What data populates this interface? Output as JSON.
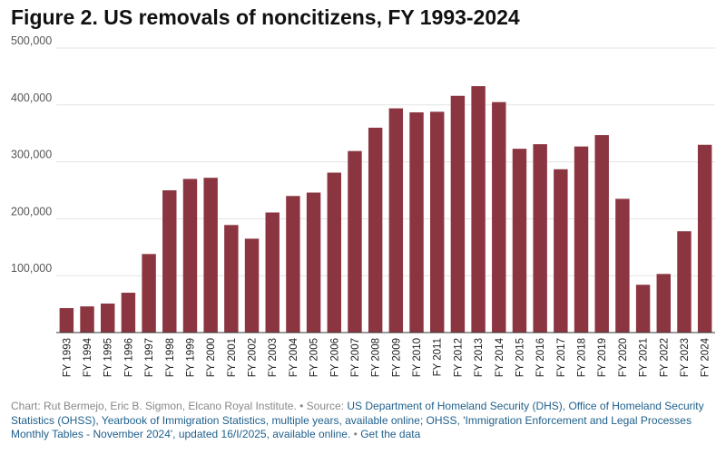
{
  "title": "Figure 2. US removals of noncitizens, FY 1993-2024",
  "footer": {
    "credit": "Chart: Rut Bermejo, Eric B. Sigmon, Elcano Royal Institute. • Source: ",
    "source_link": "US Department of Homeland Security (DHS), Office of Homeland Security Statistics (OHSS), Yearbook of Immigration Statistics, multiple years, available online; OHSS, 'Immigration Enforcement and Legal Processes Monthly Tables - November 2024', updated 16/I/2025, available online.",
    "separator": " • ",
    "get_data": "Get the data"
  },
  "colors": {
    "bar": "#8b3540",
    "grid": "#e3e3e3",
    "axis": "#333333",
    "tick_text": "#555555"
  },
  "chart_data": {
    "type": "bar",
    "title": "Figure 2. US removals of noncitizens, FY 1993-2024",
    "xlabel": "",
    "ylabel": "",
    "ylim": [
      0,
      500000
    ],
    "yticks": [
      {
        "value": 100000,
        "label": "100,000"
      },
      {
        "value": 200000,
        "label": "200,000"
      },
      {
        "value": 300000,
        "label": "300,000"
      },
      {
        "value": 400000,
        "label": "400,000"
      },
      {
        "value": 500000,
        "label": "500,000"
      }
    ],
    "grid": true,
    "categories": [
      "FY 1993",
      "FY 1994",
      "FY 1995",
      "FY 1996",
      "FY 1997",
      "FY 1998",
      "FY 1999",
      "FY 2000",
      "FY 2001",
      "FY 2002",
      "FY 2003",
      "FY 2004",
      "FY 2005",
      "FY 2006",
      "FY 2007",
      "FY 2008",
      "FY 2009",
      "FY 2010",
      "FY 2011",
      "FY 2012",
      "FY 2013",
      "FY 2014",
      "FY 2015",
      "FY 2016",
      "FY 2017",
      "FY 2018",
      "FY 2019",
      "FY 2020",
      "FY 2021",
      "FY 2022",
      "FY 2023",
      "FY 2024"
    ],
    "values": [
      43000,
      46000,
      51000,
      70000,
      138000,
      250000,
      270000,
      272000,
      189000,
      165000,
      211000,
      240000,
      246000,
      281000,
      319000,
      360000,
      394000,
      387000,
      388000,
      416000,
      433000,
      405000,
      323000,
      331000,
      287000,
      327000,
      347000,
      235000,
      84000,
      103000,
      178000,
      330000
    ]
  }
}
